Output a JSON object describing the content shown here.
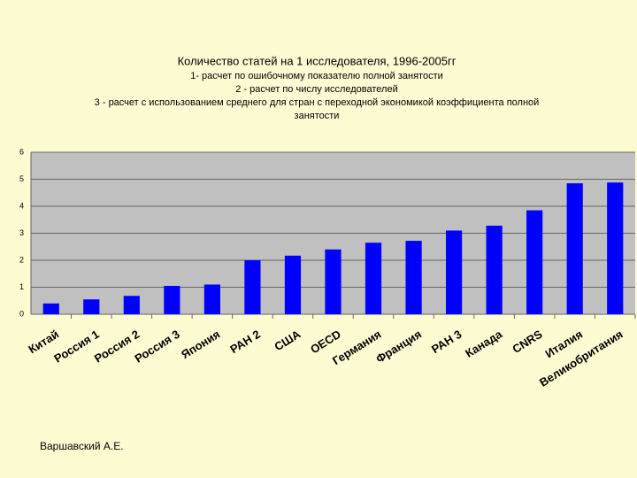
{
  "chart_data": {
    "type": "bar",
    "title": "Количество статей на 1 исследователя, 1996-2005гг",
    "subtitle": [
      "1- расчет по ошибочному показателю полной занятости",
      "2 - расчет  по числу исследователей",
      "3 - расчет с использованием среднего для стран с переходной экономикой коэффициента полной",
      "занятости"
    ],
    "categories": [
      "Китай",
      "Россия 1",
      "Россия 2",
      "Россия 3",
      "Япония",
      "РАН 2",
      "США",
      "OECD",
      "Германия",
      "Франция",
      "РАН 3",
      "Канада",
      "CNRS",
      "Италия",
      "Великобритания"
    ],
    "values": [
      0.4,
      0.55,
      0.68,
      1.05,
      1.1,
      2.0,
      2.17,
      2.4,
      2.65,
      2.72,
      3.1,
      3.28,
      3.85,
      4.85,
      4.88
    ],
    "color": "#0000ff",
    "ylim": [
      0,
      6
    ],
    "yticks": [
      0,
      1,
      2,
      3,
      4,
      5,
      6
    ],
    "grid": true
  },
  "author": "Варшавский А.Е."
}
